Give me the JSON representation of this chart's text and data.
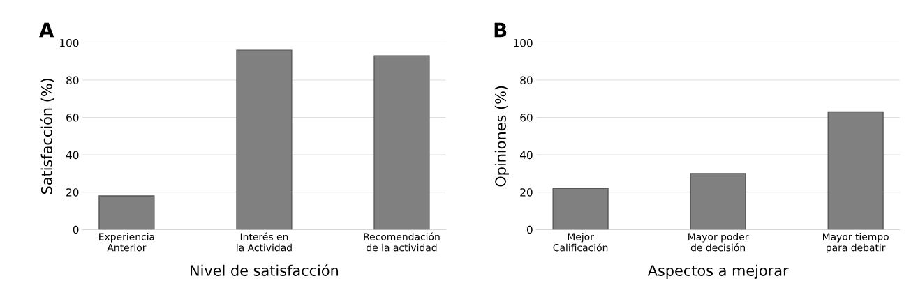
{
  "chart_data": [
    {
      "type": "bar",
      "title": "A",
      "xlabel": "Nivel de satisfacción",
      "ylabel": "Satisfacción (%)",
      "categories": [
        "Experiencia\nAnterior",
        "Interés en\nla Actividad",
        "Recomendación\nde la actividad"
      ],
      "values": [
        18,
        96,
        93
      ],
      "color": "#808080",
      "ylim": [
        0,
        100
      ],
      "yticks": [
        0,
        20,
        40,
        60,
        80,
        100
      ],
      "grid": "y"
    },
    {
      "type": "bar",
      "title": "B",
      "xlabel": "Aspectos a mejorar",
      "ylabel": "Opiniones (%)",
      "categories": [
        "Mejor\nCalificación",
        "Mayor poder\nde decisión",
        "Mayor tiempo\npara debatir"
      ],
      "values": [
        22,
        30,
        63
      ],
      "color": "#808080",
      "ylim": [
        0,
        100
      ],
      "yticks": [
        0,
        20,
        40,
        60,
        80,
        100
      ],
      "grid": "y"
    }
  ]
}
